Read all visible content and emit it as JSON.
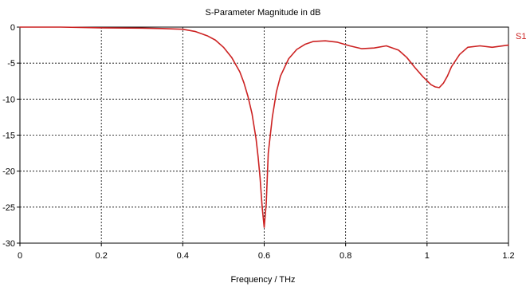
{
  "chart_data": {
    "type": "line",
    "title": "S-Parameter Magnitude in dB",
    "xlabel": "Frequency / THz",
    "ylabel": "",
    "xlim": [
      0,
      1.2
    ],
    "ylim": [
      -30,
      0
    ],
    "xticks": [
      0,
      0.2,
      0.4,
      0.6,
      0.8,
      1,
      1.2
    ],
    "xtick_labels": [
      "0",
      "0.2",
      "0.4",
      "0.6",
      "0.8",
      "1",
      "1.2"
    ],
    "yticks": [
      0,
      -5,
      -10,
      -15,
      -20,
      -25,
      -30
    ],
    "ytick_labels": [
      "0",
      "-5",
      "-10",
      "-15",
      "-20",
      "-25",
      "-30"
    ],
    "grid": true,
    "legend": "right",
    "series": [
      {
        "name": "S1",
        "color": "#cc2222",
        "x": [
          0,
          0.1,
          0.2,
          0.3,
          0.35,
          0.4,
          0.43,
          0.46,
          0.48,
          0.5,
          0.52,
          0.54,
          0.55,
          0.56,
          0.57,
          0.58,
          0.585,
          0.59,
          0.595,
          0.6,
          0.605,
          0.61,
          0.62,
          0.63,
          0.64,
          0.66,
          0.68,
          0.7,
          0.72,
          0.75,
          0.78,
          0.81,
          0.84,
          0.87,
          0.9,
          0.93,
          0.95,
          0.97,
          0.99,
          1.01,
          1.02,
          1.03,
          1.04,
          1.05,
          1.06,
          1.08,
          1.1,
          1.13,
          1.16,
          1.2
        ],
        "y": [
          0,
          0,
          -0.1,
          -0.15,
          -0.2,
          -0.3,
          -0.6,
          -1.2,
          -1.8,
          -2.8,
          -4.2,
          -6.2,
          -7.7,
          -9.6,
          -12,
          -15.5,
          -18,
          -21,
          -25,
          -27.8,
          -24.5,
          -17.5,
          -12.5,
          -9,
          -6.8,
          -4.4,
          -3.1,
          -2.4,
          -2,
          -1.9,
          -2.1,
          -2.6,
          -3,
          -2.9,
          -2.6,
          -3.2,
          -4.2,
          -5.6,
          -6.9,
          -8,
          -8.3,
          -8.4,
          -7.8,
          -6.8,
          -5.5,
          -3.8,
          -2.8,
          -2.6,
          -2.8,
          -2.5
        ]
      }
    ]
  }
}
